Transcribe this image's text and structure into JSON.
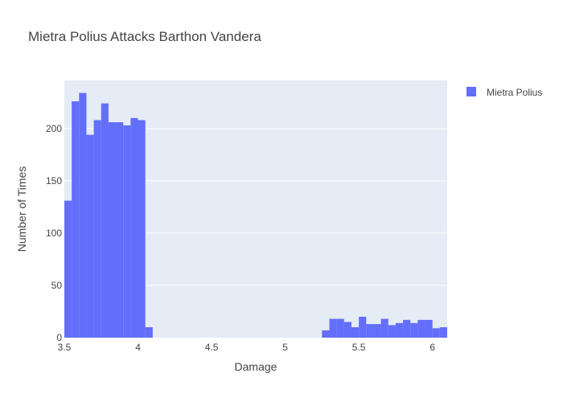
{
  "chart_data": {
    "type": "bar",
    "title": "Mietra Polius Attacks Barthon Vandera",
    "xlabel": "Damage",
    "ylabel": "Number of Times",
    "xlim": [
      3.5,
      6.1
    ],
    "ylim": [
      0,
      246
    ],
    "bin_width": 0.05,
    "x_ticks": [
      {
        "value": 3.5,
        "label": "3.5"
      },
      {
        "value": 4,
        "label": "4"
      },
      {
        "value": 4.5,
        "label": "4.5"
      },
      {
        "value": 5,
        "label": "5"
      },
      {
        "value": 5.5,
        "label": "5.5"
      },
      {
        "value": 6,
        "label": "6"
      }
    ],
    "y_ticks": [
      {
        "value": 0,
        "label": "0"
      },
      {
        "value": 50,
        "label": "50"
      },
      {
        "value": 100,
        "label": "100"
      },
      {
        "value": 150,
        "label": "150"
      },
      {
        "value": 200,
        "label": "200"
      }
    ],
    "grid": true,
    "legend_position": "top-right",
    "series": [
      {
        "name": "Mietra Polius",
        "color": "#636efa",
        "bins": [
          {
            "x0": 3.5,
            "x1": 3.55,
            "count": 131
          },
          {
            "x0": 3.55,
            "x1": 3.6,
            "count": 226
          },
          {
            "x0": 3.6,
            "x1": 3.65,
            "count": 234
          },
          {
            "x0": 3.65,
            "x1": 3.7,
            "count": 194
          },
          {
            "x0": 3.7,
            "x1": 3.75,
            "count": 208
          },
          {
            "x0": 3.75,
            "x1": 3.8,
            "count": 224
          },
          {
            "x0": 3.8,
            "x1": 3.85,
            "count": 206
          },
          {
            "x0": 3.85,
            "x1": 3.9,
            "count": 206
          },
          {
            "x0": 3.9,
            "x1": 3.95,
            "count": 203
          },
          {
            "x0": 3.95,
            "x1": 4.0,
            "count": 210
          },
          {
            "x0": 4.0,
            "x1": 4.05,
            "count": 208
          },
          {
            "x0": 4.05,
            "x1": 4.1,
            "count": 10
          },
          {
            "x0": 5.25,
            "x1": 5.3,
            "count": 7
          },
          {
            "x0": 5.3,
            "x1": 5.35,
            "count": 18
          },
          {
            "x0": 5.35,
            "x1": 5.4,
            "count": 18
          },
          {
            "x0": 5.4,
            "x1": 5.45,
            "count": 15
          },
          {
            "x0": 5.45,
            "x1": 5.5,
            "count": 10
          },
          {
            "x0": 5.5,
            "x1": 5.55,
            "count": 20
          },
          {
            "x0": 5.55,
            "x1": 5.6,
            "count": 13
          },
          {
            "x0": 5.6,
            "x1": 5.65,
            "count": 13
          },
          {
            "x0": 5.65,
            "x1": 5.7,
            "count": 18
          },
          {
            "x0": 5.7,
            "x1": 5.75,
            "count": 12
          },
          {
            "x0": 5.75,
            "x1": 5.8,
            "count": 14
          },
          {
            "x0": 5.8,
            "x1": 5.85,
            "count": 17
          },
          {
            "x0": 5.85,
            "x1": 5.9,
            "count": 14
          },
          {
            "x0": 5.9,
            "x1": 5.95,
            "count": 17
          },
          {
            "x0": 5.95,
            "x1": 6.0,
            "count": 17
          },
          {
            "x0": 6.0,
            "x1": 6.05,
            "count": 9
          },
          {
            "x0": 6.05,
            "x1": 6.1,
            "count": 10
          }
        ]
      }
    ]
  },
  "colors": {
    "plot_background": "#e5ecf6",
    "grid": "#ffffff",
    "text": "#444444",
    "title": "#444444"
  }
}
